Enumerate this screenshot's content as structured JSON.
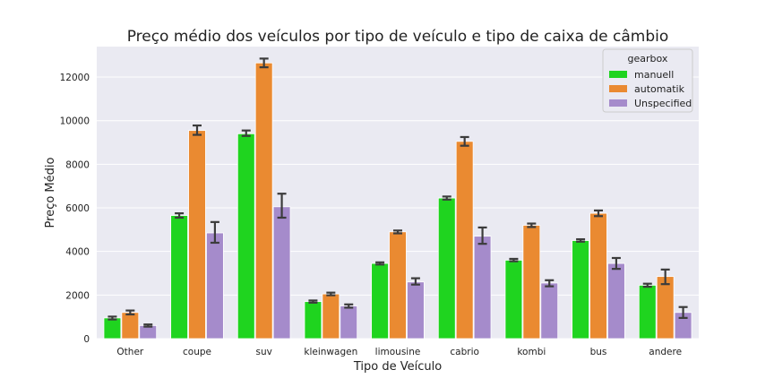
{
  "chart_data": {
    "type": "bar",
    "title": "Preço médio dos veículos por tipo de veículo e tipo de caixa de câmbio",
    "xlabel": "Tipo de Veículo",
    "ylabel": "Preço Médio",
    "ylim": [
      0,
      13400
    ],
    "yticks": [
      0,
      2000,
      4000,
      6000,
      8000,
      10000,
      12000
    ],
    "grid": true,
    "legend": {
      "title": "gearbox",
      "placement": "top-right"
    },
    "categories": [
      "Other",
      "coupe",
      "suv",
      "kleinwagen",
      "limousine",
      "cabrio",
      "kombi",
      "bus",
      "andere"
    ],
    "series": [
      {
        "name": "manuell",
        "color": "#1fd41f",
        "values": [
          950,
          5650,
          9400,
          1700,
          3450,
          6450,
          3600,
          4500,
          2450
        ],
        "err_low": [
          880,
          5550,
          9300,
          1650,
          3400,
          6380,
          3550,
          4450,
          2380
        ],
        "err_high": [
          1010,
          5750,
          9550,
          1750,
          3500,
          6520,
          3660,
          4560,
          2520
        ]
      },
      {
        "name": "automatik",
        "color": "#ea8a31",
        "values": [
          1200,
          9550,
          12650,
          2050,
          4900,
          9050,
          5200,
          5750,
          2850
        ],
        "err_low": [
          1110,
          9350,
          12450,
          1990,
          4830,
          8850,
          5120,
          5620,
          2500
        ],
        "err_high": [
          1290,
          9780,
          12850,
          2110,
          4960,
          9250,
          5280,
          5880,
          3170
        ]
      },
      {
        "name": "Unspecified",
        "color": "#a58bcb",
        "values": [
          600,
          4850,
          6050,
          1500,
          2600,
          4700,
          2550,
          3450,
          1200
        ],
        "err_low": [
          550,
          4400,
          5550,
          1420,
          2480,
          4350,
          2400,
          3200,
          950
        ],
        "err_high": [
          650,
          5350,
          6650,
          1570,
          2770,
          5100,
          2680,
          3700,
          1450
        ]
      }
    ]
  }
}
